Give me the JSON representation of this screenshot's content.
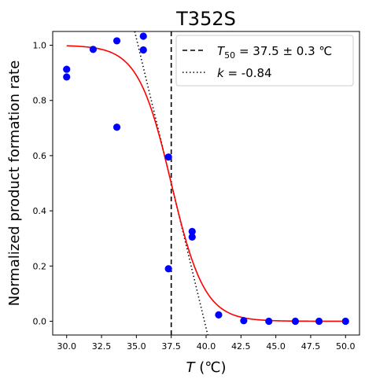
{
  "chart_data": {
    "type": "scatter",
    "title": "T352S",
    "xlabel_var": "T",
    "xlabel_unit": " (℃)",
    "ylabel": "Normalized product formation rate",
    "xlim": [
      29.0,
      51.0
    ],
    "ylim": [
      -0.05,
      1.05
    ],
    "xticks": [
      "30.0",
      "32.5",
      "35.0",
      "37.5",
      "40.0",
      "42.5",
      "45.0",
      "47.5",
      "50.0"
    ],
    "yticks": [
      "0.0",
      "0.2",
      "0.4",
      "0.6",
      "0.8",
      "1.0"
    ],
    "grid": false,
    "legend_position": "top-right",
    "points": [
      {
        "x": 30.0,
        "y": 0.913
      },
      {
        "x": 30.0,
        "y": 0.885
      },
      {
        "x": 31.9,
        "y": 0.985
      },
      {
        "x": 33.6,
        "y": 1.016
      },
      {
        "x": 33.6,
        "y": 0.703
      },
      {
        "x": 35.5,
        "y": 1.033
      },
      {
        "x": 35.5,
        "y": 0.983
      },
      {
        "x": 37.3,
        "y": 0.595
      },
      {
        "x": 37.3,
        "y": 0.19
      },
      {
        "x": 39.0,
        "y": 0.325
      },
      {
        "x": 39.0,
        "y": 0.305
      },
      {
        "x": 40.9,
        "y": 0.023
      },
      {
        "x": 42.7,
        "y": 0.002
      },
      {
        "x": 44.5,
        "y": 0.0
      },
      {
        "x": 46.4,
        "y": 0.0
      },
      {
        "x": 48.1,
        "y": 0.0
      },
      {
        "x": 50.0,
        "y": 0.0
      }
    ],
    "fit": {
      "type": "sigmoid",
      "T50": 37.5,
      "k": -0.84,
      "x_range": [
        30.0,
        50.0
      ]
    },
    "t50_line_x": 37.5,
    "slope_line": {
      "x0": 37.5,
      "y0": 0.5,
      "slope": -0.21
    },
    "legend": {
      "t50_var": "T",
      "t50_sub": "50",
      "t50_value": " = 37.5 ± 0.3 ℃",
      "k_var": "k",
      "k_value": " = -0.84"
    },
    "colors": {
      "points": "#0000ff",
      "fit": "#ff0000",
      "lines": "#000000"
    }
  }
}
